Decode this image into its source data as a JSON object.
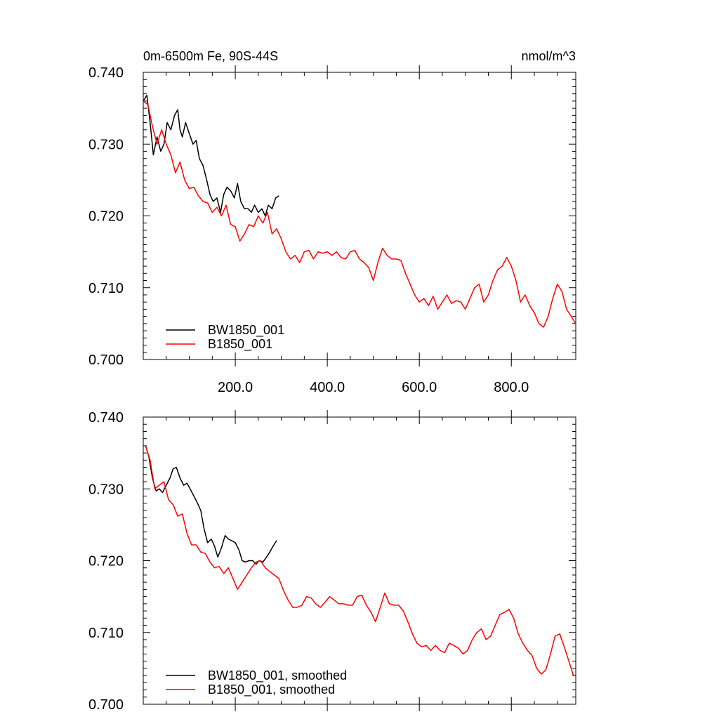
{
  "header": {
    "left_title": "0m-6500m Fe, 90S-44S",
    "right_title": "nmol/m^3"
  },
  "colors": {
    "bw_series": "#000000",
    "b_series": "#ff0000",
    "axis": "#000000"
  },
  "chart_data": [
    {
      "type": "line",
      "title": "0m-6500m Fe, 90S-44S",
      "units_label": "nmol/m^3",
      "xlim": [
        0,
        940
      ],
      "ylim": [
        0.7,
        0.74
      ],
      "y_ticks": [
        "0.740",
        "0.730",
        "0.720",
        "0.710",
        "0.700"
      ],
      "x_ticks": [
        "200.0",
        "400.0",
        "600.0",
        "800.0"
      ],
      "grid": false,
      "legend_position": "bottom-left",
      "series": [
        {
          "name": "BW1850_001",
          "color": "#000000",
          "x": [
            0,
            8,
            15,
            22,
            30,
            38,
            45,
            52,
            60,
            68,
            75,
            80,
            85,
            92,
            100,
            108,
            115,
            122,
            130,
            138,
            145,
            152,
            160,
            168,
            175,
            182,
            190,
            198,
            205,
            212,
            220,
            228,
            235,
            242,
            250,
            258,
            265,
            272,
            280,
            288,
            295
          ],
          "values": [
            0.736,
            0.7368,
            0.733,
            0.7285,
            0.731,
            0.729,
            0.73,
            0.733,
            0.732,
            0.734,
            0.7348,
            0.732,
            0.731,
            0.733,
            0.7315,
            0.73,
            0.7305,
            0.728,
            0.727,
            0.725,
            0.723,
            0.722,
            0.7225,
            0.7205,
            0.723,
            0.724,
            0.7235,
            0.7225,
            0.7245,
            0.722,
            0.721,
            0.721,
            0.7205,
            0.7215,
            0.7205,
            0.721,
            0.72,
            0.7215,
            0.721,
            0.7225,
            0.7228
          ]
        },
        {
          "name": "B1850_001",
          "color": "#ff0000",
          "x": [
            0,
            10,
            20,
            30,
            40,
            50,
            60,
            70,
            80,
            90,
            100,
            110,
            120,
            130,
            140,
            150,
            160,
            170,
            180,
            190,
            200,
            210,
            220,
            230,
            240,
            250,
            260,
            270,
            280,
            290,
            300,
            310,
            320,
            330,
            340,
            350,
            360,
            370,
            380,
            390,
            400,
            410,
            420,
            430,
            440,
            450,
            460,
            470,
            480,
            490,
            500,
            510,
            520,
            530,
            540,
            550,
            560,
            570,
            580,
            590,
            600,
            610,
            620,
            630,
            640,
            650,
            660,
            670,
            680,
            690,
            700,
            710,
            720,
            730,
            740,
            750,
            760,
            770,
            780,
            790,
            800,
            810,
            820,
            830,
            840,
            850,
            860,
            870,
            880,
            890,
            900,
            910,
            920,
            930,
            940
          ],
          "values": [
            0.736,
            0.7355,
            0.7325,
            0.73,
            0.732,
            0.73,
            0.7285,
            0.726,
            0.7275,
            0.725,
            0.7238,
            0.724,
            0.7228,
            0.722,
            0.7218,
            0.7205,
            0.7212,
            0.72,
            0.7215,
            0.7188,
            0.7185,
            0.7165,
            0.7175,
            0.7188,
            0.7185,
            0.72,
            0.719,
            0.7205,
            0.7175,
            0.7182,
            0.7168,
            0.715,
            0.714,
            0.7145,
            0.7135,
            0.715,
            0.7152,
            0.714,
            0.715,
            0.7148,
            0.715,
            0.7145,
            0.715,
            0.7142,
            0.714,
            0.715,
            0.7152,
            0.714,
            0.7135,
            0.7128,
            0.711,
            0.7135,
            0.7155,
            0.7145,
            0.714,
            0.714,
            0.7138,
            0.712,
            0.7105,
            0.709,
            0.708,
            0.7085,
            0.7075,
            0.7088,
            0.707,
            0.708,
            0.709,
            0.7078,
            0.7082,
            0.708,
            0.707,
            0.7085,
            0.71,
            0.7105,
            0.708,
            0.709,
            0.711,
            0.7125,
            0.713,
            0.7142,
            0.713,
            0.711,
            0.708,
            0.709,
            0.7075,
            0.7065,
            0.705,
            0.7045,
            0.706,
            0.7085,
            0.7105,
            0.7095,
            0.707,
            0.706,
            0.705
          ],
          "values_tail_note": ""
        }
      ],
      "legend": [
        "BW1850_001",
        "B1850_001"
      ]
    },
    {
      "type": "line",
      "xlim": [
        0,
        940
      ],
      "ylim": [
        0.7,
        0.74
      ],
      "y_ticks": [
        "0.740",
        "0.730",
        "0.720",
        "0.710",
        "0.700"
      ],
      "grid": false,
      "legend_position": "bottom-left",
      "series": [
        {
          "name": "BW1850_001, smoothed",
          "color": "#000000",
          "x": [
            5,
            12,
            20,
            28,
            35,
            42,
            50,
            58,
            65,
            72,
            80,
            88,
            95,
            102,
            110,
            118,
            125,
            132,
            140,
            148,
            155,
            162,
            170,
            178,
            185,
            192,
            200,
            208,
            215,
            222,
            230,
            238,
            245,
            252,
            260,
            268,
            275,
            282,
            290
          ],
          "values": [
            0.736,
            0.7345,
            0.7315,
            0.7297,
            0.73,
            0.7295,
            0.7305,
            0.7315,
            0.7328,
            0.733,
            0.7315,
            0.7305,
            0.7308,
            0.73,
            0.729,
            0.728,
            0.727,
            0.7245,
            0.7225,
            0.723,
            0.722,
            0.7205,
            0.7218,
            0.7235,
            0.723,
            0.7228,
            0.7225,
            0.7215,
            0.72,
            0.7198,
            0.72,
            0.72,
            0.7195,
            0.72,
            0.7198,
            0.7205,
            0.7212,
            0.722,
            0.7228
          ]
        },
        {
          "name": "B1850_001, smoothed",
          "color": "#ff0000",
          "x": [
            5,
            15,
            25,
            35,
            45,
            55,
            65,
            75,
            85,
            95,
            105,
            115,
            125,
            135,
            145,
            155,
            165,
            175,
            185,
            195,
            205,
            215,
            225,
            235,
            245,
            255,
            265,
            275,
            285,
            295,
            305,
            315,
            325,
            335,
            345,
            355,
            365,
            375,
            385,
            395,
            405,
            415,
            425,
            435,
            445,
            455,
            465,
            475,
            485,
            495,
            505,
            515,
            525,
            535,
            545,
            555,
            565,
            575,
            585,
            595,
            605,
            615,
            625,
            635,
            645,
            655,
            665,
            675,
            685,
            695,
            705,
            715,
            725,
            735,
            745,
            755,
            765,
            775,
            785,
            795,
            805,
            815,
            825,
            835,
            845,
            855,
            865,
            875,
            885,
            895,
            905,
            915,
            925,
            935
          ],
          "values": [
            0.736,
            0.734,
            0.73,
            0.7305,
            0.731,
            0.7285,
            0.7278,
            0.7262,
            0.7265,
            0.7238,
            0.7222,
            0.7222,
            0.7212,
            0.721,
            0.7198,
            0.719,
            0.7192,
            0.7182,
            0.719,
            0.7175,
            0.716,
            0.717,
            0.718,
            0.719,
            0.7198,
            0.72,
            0.719,
            0.7185,
            0.718,
            0.7175,
            0.7158,
            0.7145,
            0.7135,
            0.7135,
            0.7138,
            0.715,
            0.7148,
            0.714,
            0.7135,
            0.7142,
            0.715,
            0.7145,
            0.714,
            0.714,
            0.7138,
            0.7138,
            0.715,
            0.7152,
            0.7138,
            0.7128,
            0.7115,
            0.7135,
            0.7155,
            0.714,
            0.7138,
            0.7138,
            0.713,
            0.7115,
            0.7098,
            0.7085,
            0.708,
            0.7082,
            0.7075,
            0.7082,
            0.7075,
            0.7072,
            0.7085,
            0.7082,
            0.7078,
            0.707,
            0.7075,
            0.709,
            0.71,
            0.7105,
            0.709,
            0.7095,
            0.711,
            0.7125,
            0.7128,
            0.7132,
            0.712,
            0.7098,
            0.7085,
            0.7075,
            0.7068,
            0.705,
            0.7042,
            0.7048,
            0.707,
            0.7095,
            0.7098,
            0.708,
            0.706,
            0.704
          ],
          "values_tail": ""
        }
      ],
      "legend": [
        "BW1850_001, smoothed",
        "B1850_001, smoothed"
      ]
    }
  ]
}
